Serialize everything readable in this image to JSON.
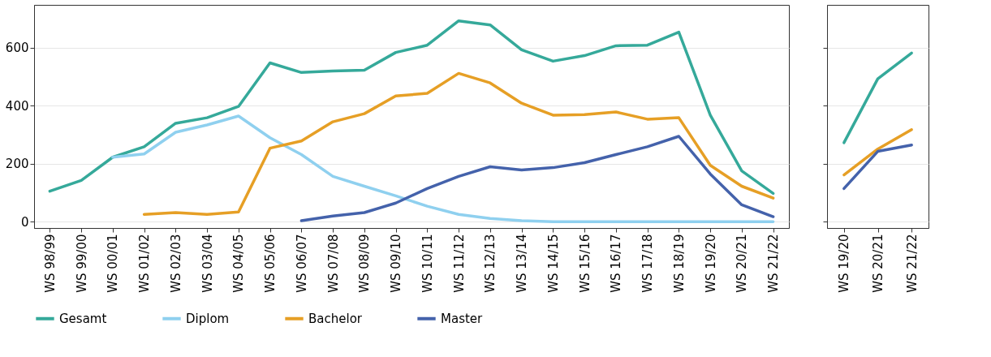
{
  "chart_data": [
    {
      "type": "line",
      "categories": [
        "WS 98/99",
        "WS 99/00",
        "WS 00/01",
        "WS 01/02",
        "WS 02/03",
        "WS 03/04",
        "WS 04/05",
        "WS 05/06",
        "WS 06/07",
        "WS 07/08",
        "WS 08/09",
        "WS 09/10",
        "WS 10/11",
        "WS 11/12",
        "WS 12/13",
        "WS 13/14",
        "WS 14/15",
        "WS 15/16",
        "WS 16/17",
        "WS 17/18",
        "WS 18/19",
        "WS 19/20",
        "WS 20/21",
        "WS 21/22"
      ],
      "series": [
        {
          "name": "Gesamt",
          "color": "#35a99a",
          "values": [
            105,
            142,
            222,
            258,
            339,
            358,
            397,
            547,
            514,
            519,
            522,
            583,
            608,
            692,
            678,
            592,
            553,
            572,
            606,
            608,
            653,
            367,
            175,
            97
          ]
        },
        {
          "name": "Diplom",
          "color": "#8fd0ef",
          "values": [
            null,
            null,
            222,
            233,
            308,
            333,
            364,
            289,
            231,
            156,
            122,
            89,
            53,
            25,
            11,
            3,
            0,
            0,
            0,
            0,
            0,
            0,
            0,
            0
          ]
        },
        {
          "name": "Bachelor",
          "color": "#e69f25",
          "values": [
            null,
            null,
            null,
            25,
            31,
            25,
            33,
            253,
            278,
            344,
            372,
            433,
            442,
            511,
            478,
            408,
            367,
            369,
            378,
            353,
            358,
            194,
            122,
            81
          ]
        },
        {
          "name": "Master",
          "color": "#4462ab",
          "values": [
            null,
            null,
            null,
            null,
            null,
            null,
            null,
            null,
            3,
            19,
            31,
            64,
            114,
            156,
            189,
            178,
            186,
            203,
            231,
            258,
            294,
            164,
            58,
            17
          ]
        }
      ],
      "ylim": [
        -22,
        747
      ],
      "yticks": [
        0,
        200,
        400,
        600
      ],
      "grid": "y",
      "legend": "bottom"
    },
    {
      "type": "line",
      "categories": [
        "WS 19/20",
        "WS 20/21",
        "WS 21/22"
      ],
      "series": [
        {
          "name": "Gesamt",
          "color": "#35a99a",
          "values": [
            272,
            492,
            581
          ]
        },
        {
          "name": "Bachelor",
          "color": "#e69f25",
          "values": [
            161,
            250,
            317
          ]
        },
        {
          "name": "Master",
          "color": "#4462ab",
          "values": [
            114,
            242,
            264
          ]
        }
      ],
      "ylim": [
        -22,
        747
      ],
      "yticks": [
        0,
        200,
        400,
        600
      ],
      "grid": "y",
      "legend": "bottom",
      "tick_labels": "x"
    }
  ]
}
